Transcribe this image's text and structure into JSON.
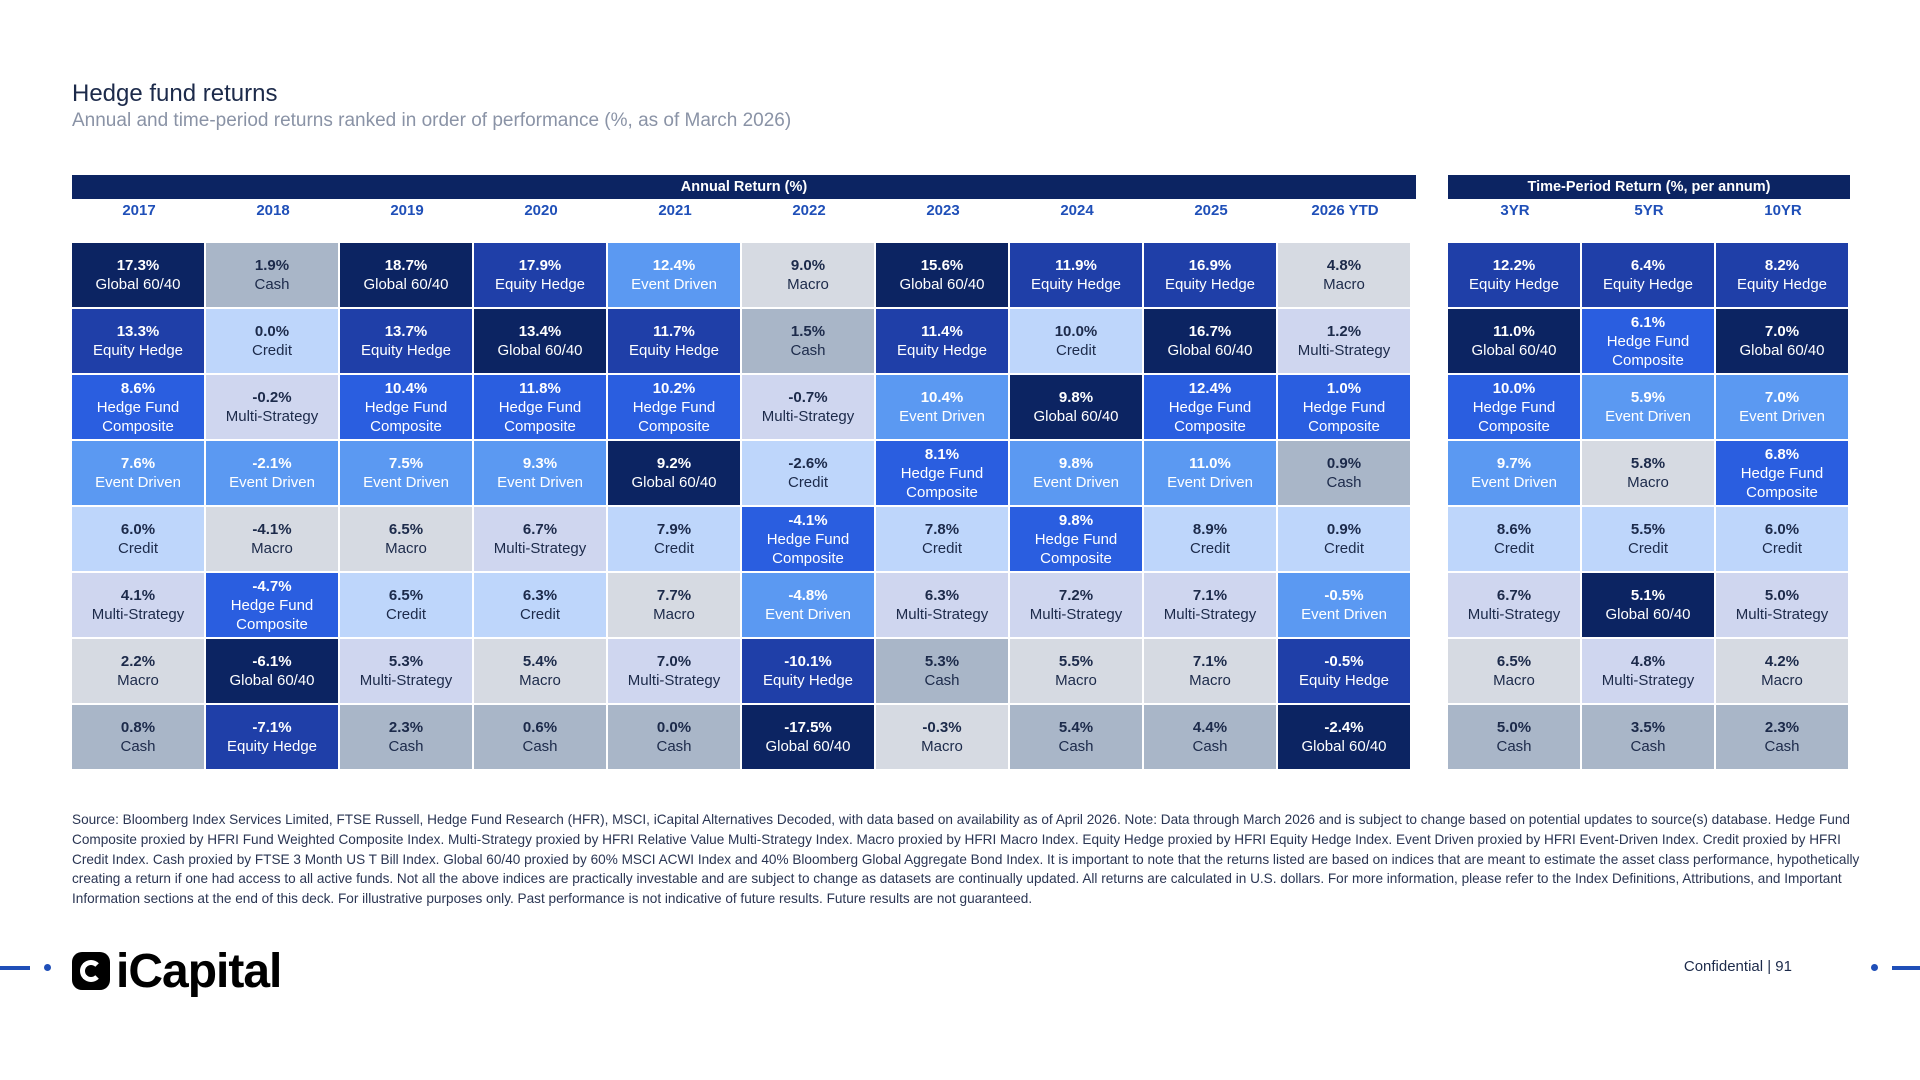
{
  "header": {
    "title": "Hedge fund returns",
    "subtitle": "Annual and time-period returns ranked in order of performance (%, as of March 2026)"
  },
  "colors": {
    "Global 60/40": "#0c2462",
    "Equity Hedge": "#1f3fa8",
    "Hedge Fund Composite": "#2a5ee0",
    "Event Driven": "#5b99f2",
    "Credit": "#bed6fb",
    "Multi-Strategy": "#cfd6ef",
    "Macro": "#d6dae2",
    "Cash": "#a9b6c8"
  },
  "chart_data": {
    "type": "table",
    "title": "Hedge fund returns",
    "panels": [
      {
        "banner": "Annual Return (%)",
        "columns": [
          {
            "label": "2017",
            "cells": [
              {
                "value": "17.3%",
                "name": "Global 60/40"
              },
              {
                "value": "13.3%",
                "name": "Equity Hedge"
              },
              {
                "value": "8.6%",
                "name": "Hedge Fund Composite"
              },
              {
                "value": "7.6%",
                "name": "Event Driven"
              },
              {
                "value": "6.0%",
                "name": "Credit"
              },
              {
                "value": "4.1%",
                "name": "Multi-Strategy"
              },
              {
                "value": "2.2%",
                "name": "Macro"
              },
              {
                "value": "0.8%",
                "name": "Cash"
              }
            ]
          },
          {
            "label": "2018",
            "cells": [
              {
                "value": "1.9%",
                "name": "Cash"
              },
              {
                "value": "0.0%",
                "name": "Credit"
              },
              {
                "value": "-0.2%",
                "name": "Multi-Strategy"
              },
              {
                "value": "-2.1%",
                "name": "Event Driven"
              },
              {
                "value": "-4.1%",
                "name": "Macro"
              },
              {
                "value": "-4.7%",
                "name": "Hedge Fund Composite"
              },
              {
                "value": "-6.1%",
                "name": "Global 60/40"
              },
              {
                "value": "-7.1%",
                "name": "Equity Hedge"
              }
            ]
          },
          {
            "label": "2019",
            "cells": [
              {
                "value": "18.7%",
                "name": "Global 60/40"
              },
              {
                "value": "13.7%",
                "name": "Equity Hedge"
              },
              {
                "value": "10.4%",
                "name": "Hedge Fund Composite"
              },
              {
                "value": "7.5%",
                "name": "Event Driven"
              },
              {
                "value": "6.5%",
                "name": "Macro"
              },
              {
                "value": "6.5%",
                "name": "Credit"
              },
              {
                "value": "5.3%",
                "name": "Multi-Strategy"
              },
              {
                "value": "2.3%",
                "name": "Cash"
              }
            ]
          },
          {
            "label": "2020",
            "cells": [
              {
                "value": "17.9%",
                "name": "Equity Hedge"
              },
              {
                "value": "13.4%",
                "name": "Global 60/40"
              },
              {
                "value": "11.8%",
                "name": "Hedge Fund Composite"
              },
              {
                "value": "9.3%",
                "name": "Event Driven"
              },
              {
                "value": "6.7%",
                "name": "Multi-Strategy"
              },
              {
                "value": "6.3%",
                "name": "Credit"
              },
              {
                "value": "5.4%",
                "name": "Macro"
              },
              {
                "value": "0.6%",
                "name": "Cash"
              }
            ]
          },
          {
            "label": "2021",
            "cells": [
              {
                "value": "12.4%",
                "name": "Event Driven"
              },
              {
                "value": "11.7%",
                "name": "Equity Hedge"
              },
              {
                "value": "10.2%",
                "name": "Hedge Fund Composite"
              },
              {
                "value": "9.2%",
                "name": "Global 60/40"
              },
              {
                "value": "7.9%",
                "name": "Credit"
              },
              {
                "value": "7.7%",
                "name": "Macro"
              },
              {
                "value": "7.0%",
                "name": "Multi-Strategy"
              },
              {
                "value": "0.0%",
                "name": "Cash"
              }
            ]
          },
          {
            "label": "2022",
            "cells": [
              {
                "value": "9.0%",
                "name": "Macro"
              },
              {
                "value": "1.5%",
                "name": "Cash"
              },
              {
                "value": "-0.7%",
                "name": "Multi-Strategy"
              },
              {
                "value": "-2.6%",
                "name": "Credit"
              },
              {
                "value": "-4.1%",
                "name": "Hedge Fund Composite"
              },
              {
                "value": "-4.8%",
                "name": "Event Driven"
              },
              {
                "value": "-10.1%",
                "name": "Equity Hedge"
              },
              {
                "value": "-17.5%",
                "name": "Global 60/40"
              }
            ]
          },
          {
            "label": "2023",
            "cells": [
              {
                "value": "15.6%",
                "name": "Global 60/40"
              },
              {
                "value": "11.4%",
                "name": "Equity Hedge"
              },
              {
                "value": "10.4%",
                "name": "Event Driven"
              },
              {
                "value": "8.1%",
                "name": "Hedge Fund Composite"
              },
              {
                "value": "7.8%",
                "name": "Credit"
              },
              {
                "value": "6.3%",
                "name": "Multi-Strategy"
              },
              {
                "value": "5.3%",
                "name": "Cash"
              },
              {
                "value": "-0.3%",
                "name": "Macro"
              }
            ]
          },
          {
            "label": "2024",
            "cells": [
              {
                "value": "11.9%",
                "name": "Equity Hedge"
              },
              {
                "value": "10.0%",
                "name": "Credit"
              },
              {
                "value": "9.8%",
                "name": "Global 60/40"
              },
              {
                "value": "9.8%",
                "name": "Event Driven"
              },
              {
                "value": "9.8%",
                "name": "Hedge Fund Composite"
              },
              {
                "value": "7.2%",
                "name": "Multi-Strategy"
              },
              {
                "value": "5.5%",
                "name": "Macro"
              },
              {
                "value": "5.4%",
                "name": "Cash"
              }
            ]
          },
          {
            "label": "2025",
            "cells": [
              {
                "value": "16.9%",
                "name": "Equity Hedge"
              },
              {
                "value": "16.7%",
                "name": "Global 60/40"
              },
              {
                "value": "12.4%",
                "name": "Hedge Fund Composite"
              },
              {
                "value": "11.0%",
                "name": "Event Driven"
              },
              {
                "value": "8.9%",
                "name": "Credit"
              },
              {
                "value": "7.1%",
                "name": "Multi-Strategy"
              },
              {
                "value": "7.1%",
                "name": "Macro"
              },
              {
                "value": "4.4%",
                "name": "Cash"
              }
            ]
          },
          {
            "label": "2026 YTD",
            "cells": [
              {
                "value": "4.8%",
                "name": "Macro"
              },
              {
                "value": "1.2%",
                "name": "Multi-Strategy"
              },
              {
                "value": "1.0%",
                "name": "Hedge Fund Composite"
              },
              {
                "value": "0.9%",
                "name": "Cash"
              },
              {
                "value": "0.9%",
                "name": "Credit"
              },
              {
                "value": "-0.5%",
                "name": "Event Driven"
              },
              {
                "value": "-0.5%",
                "name": "Equity Hedge"
              },
              {
                "value": "-2.4%",
                "name": "Global 60/40"
              }
            ]
          }
        ]
      },
      {
        "banner": "Time-Period Return (%, per annum)",
        "columns": [
          {
            "label": "3YR",
            "cells": [
              {
                "value": "12.2%",
                "name": "Equity Hedge"
              },
              {
                "value": "11.0%",
                "name": "Global 60/40"
              },
              {
                "value": "10.0%",
                "name": "Hedge Fund Composite"
              },
              {
                "value": "9.7%",
                "name": "Event Driven"
              },
              {
                "value": "8.6%",
                "name": "Credit"
              },
              {
                "value": "6.7%",
                "name": "Multi-Strategy"
              },
              {
                "value": "6.5%",
                "name": "Macro"
              },
              {
                "value": "5.0%",
                "name": "Cash"
              }
            ]
          },
          {
            "label": "5YR",
            "cells": [
              {
                "value": "6.4%",
                "name": "Equity Hedge"
              },
              {
                "value": "6.1%",
                "name": "Hedge Fund Composite"
              },
              {
                "value": "5.9%",
                "name": "Event Driven"
              },
              {
                "value": "5.8%",
                "name": "Macro"
              },
              {
                "value": "5.5%",
                "name": "Credit"
              },
              {
                "value": "5.1%",
                "name": "Global 60/40"
              },
              {
                "value": "4.8%",
                "name": "Multi-Strategy"
              },
              {
                "value": "3.5%",
                "name": "Cash"
              }
            ]
          },
          {
            "label": "10YR",
            "cells": [
              {
                "value": "8.2%",
                "name": "Equity Hedge"
              },
              {
                "value": "7.0%",
                "name": "Global 60/40"
              },
              {
                "value": "7.0%",
                "name": "Event Driven"
              },
              {
                "value": "6.8%",
                "name": "Hedge Fund Composite"
              },
              {
                "value": "6.0%",
                "name": "Credit"
              },
              {
                "value": "5.0%",
                "name": "Multi-Strategy"
              },
              {
                "value": "4.2%",
                "name": "Macro"
              },
              {
                "value": "2.3%",
                "name": "Cash"
              }
            ]
          }
        ]
      }
    ]
  },
  "source_note": "Source: Bloomberg Index Services Limited, FTSE Russell, Hedge Fund Research (HFR), MSCI, iCapital Alternatives Decoded, with data based on availability as of April 2026. Note: Data through March 2026 and is subject to change based on potential updates to source(s) database. Hedge Fund Composite proxied by HFRI Fund Weighted Composite Index. Multi-Strategy proxied by HFRI Relative Value Multi-Strategy Index. Macro proxied by HFRI Macro Index. Equity Hedge proxied by HFRI Equity Hedge Index. Event Driven proxied by HFRI Event-Driven Index. Credit proxied by HFRI Credit Index. Cash proxied by FTSE 3 Month US T Bill Index. Global 60/40 proxied by 60% MSCI ACWI Index and 40% Bloomberg Global Aggregate Bond Index. It is important to note that the returns listed are based on indices that are meant to estimate the asset class performance, hypothetically creating a return if one had access to all active funds. Not all the above indices are practically investable and are subject to change as datasets are continually updated. All returns are calculated in U.S. dollars. For more information, please refer to the Index Definitions, Attributions, and Important Information sections at the end of this deck. For illustrative purposes only. Past performance is not indicative of future results. Future results are not guaranteed.",
  "footer": {
    "logo_text": "iCapital",
    "confidential": "Confidential  |  91"
  }
}
